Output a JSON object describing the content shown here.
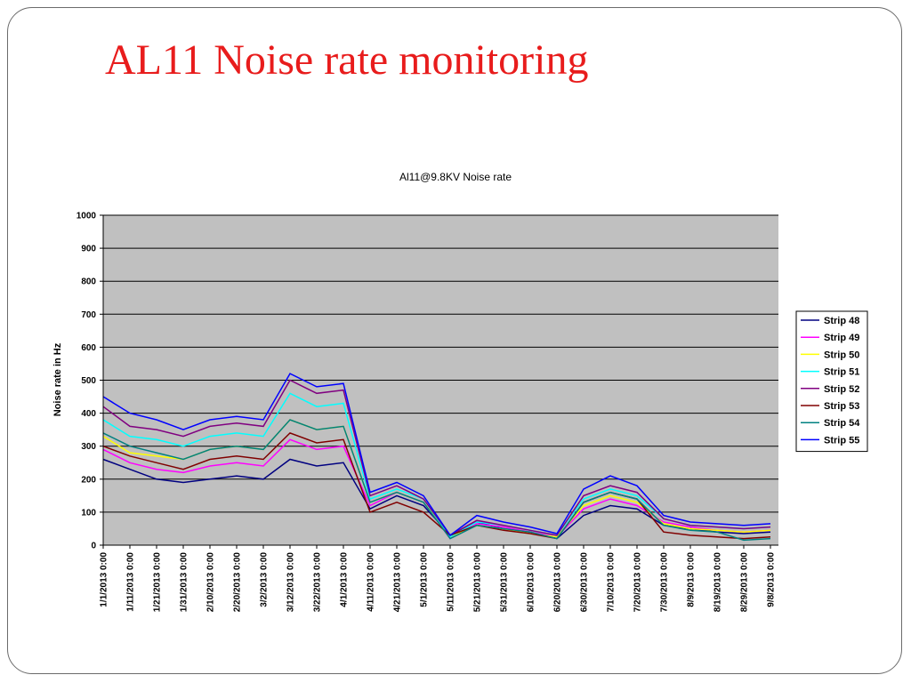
{
  "slide": {
    "title": "AL11 Noise rate monitoring"
  },
  "chart_data": {
    "type": "line",
    "title": "Al11@9.8KV Noise rate",
    "xlabel": "",
    "ylabel": "Noise rate in Hz",
    "ylim": [
      0,
      1000
    ],
    "yticks": [
      "0",
      "100",
      "200",
      "300",
      "400",
      "500",
      "600",
      "700",
      "800",
      "900",
      "1000"
    ],
    "x_tick_labels": [
      "1/1/2013 0:00",
      "1/11/2013 0:00",
      "1/21/2013 0:00",
      "1/31/2013 0:00",
      "2/10/2013 0:00",
      "2/20/2013 0:00",
      "3/2/2013 0:00",
      "3/12/2013 0:00",
      "3/22/2013 0:00",
      "4/1/2013 0:00",
      "4/11/2013 0:00",
      "4/21/2013 0:00",
      "5/1/2013 0:00",
      "5/11/2013 0:00",
      "5/21/2013 0:00",
      "5/31/2013 0:00",
      "6/10/2013 0:00",
      "6/20/2013 0:00",
      "6/30/2013 0:00",
      "7/10/2013 0:00",
      "7/20/2013 0:00",
      "7/30/2013 0:00",
      "8/9/2013 0:00",
      "8/19/2013 0:00",
      "8/29/2013 0:00",
      "9/8/2013 0:00"
    ],
    "xlim": [
      "2013-01-01",
      "2013-09-11"
    ],
    "grid": true,
    "legend_position": "right",
    "plot_background": "#c0c0c0",
    "x": [
      "2013-01-01",
      "2013-01-11",
      "2013-01-21",
      "2013-01-31",
      "2013-02-10",
      "2013-02-20",
      "2013-03-02",
      "2013-03-12",
      "2013-03-22",
      "2013-04-01",
      "2013-04-11",
      "2013-04-21",
      "2013-05-01",
      "2013-05-11",
      "2013-05-21",
      "2013-05-31",
      "2013-06-10",
      "2013-06-20",
      "2013-06-30",
      "2013-07-10",
      "2013-07-20",
      "2013-07-30",
      "2013-08-09",
      "2013-08-19",
      "2013-08-29",
      "2013-09-08"
    ],
    "series": [
      {
        "name": "Strip 48",
        "color": "#000080",
        "values": [
          260,
          230,
          200,
          190,
          200,
          210,
          200,
          260,
          240,
          250,
          110,
          150,
          120,
          30,
          70,
          50,
          40,
          20,
          90,
          120,
          110,
          60,
          50,
          40,
          35,
          40
        ]
      },
      {
        "name": "Strip 49",
        "color": "#ff00ff",
        "values": [
          290,
          250,
          230,
          220,
          240,
          250,
          240,
          320,
          290,
          300,
          120,
          160,
          130,
          20,
          65,
          55,
          40,
          25,
          110,
          140,
          120,
          70,
          55,
          45,
          40,
          45
        ]
      },
      {
        "name": "Strip 50",
        "color": "#ffff00",
        "values": [
          330,
          280,
          270,
          260,
          290,
          300,
          290,
          380,
          350,
          360,
          130,
          160,
          130,
          25,
          60,
          50,
          35,
          25,
          120,
          150,
          130,
          65,
          50,
          45,
          40,
          45
        ]
      },
      {
        "name": "Strip 51",
        "color": "#00ffff",
        "values": [
          380,
          330,
          320,
          300,
          330,
          340,
          330,
          460,
          420,
          430,
          140,
          170,
          140,
          25,
          70,
          60,
          45,
          30,
          140,
          170,
          150,
          80,
          60,
          55,
          50,
          55
        ]
      },
      {
        "name": "Strip 52",
        "color": "#800080",
        "values": [
          420,
          360,
          350,
          330,
          360,
          370,
          360,
          500,
          460,
          470,
          150,
          180,
          140,
          30,
          75,
          60,
          45,
          30,
          150,
          180,
          160,
          80,
          60,
          55,
          50,
          55
        ]
      },
      {
        "name": "Strip 53",
        "color": "#800000",
        "values": [
          300,
          270,
          250,
          230,
          260,
          270,
          260,
          340,
          310,
          320,
          100,
          130,
          100,
          30,
          60,
          45,
          35,
          20,
          130,
          160,
          140,
          40,
          30,
          25,
          20,
          25
        ]
      },
      {
        "name": "Strip 54",
        "color": "#008080",
        "values": [
          340,
          300,
          280,
          260,
          290,
          300,
          290,
          380,
          350,
          360,
          130,
          160,
          130,
          20,
          60,
          50,
          40,
          20,
          130,
          160,
          140,
          60,
          45,
          40,
          15,
          20
        ]
      },
      {
        "name": "Strip 55",
        "color": "#0000ff",
        "values": [
          450,
          400,
          380,
          350,
          380,
          390,
          380,
          520,
          480,
          490,
          160,
          190,
          150,
          30,
          90,
          70,
          55,
          35,
          170,
          210,
          180,
          90,
          70,
          65,
          60,
          65
        ]
      }
    ]
  }
}
